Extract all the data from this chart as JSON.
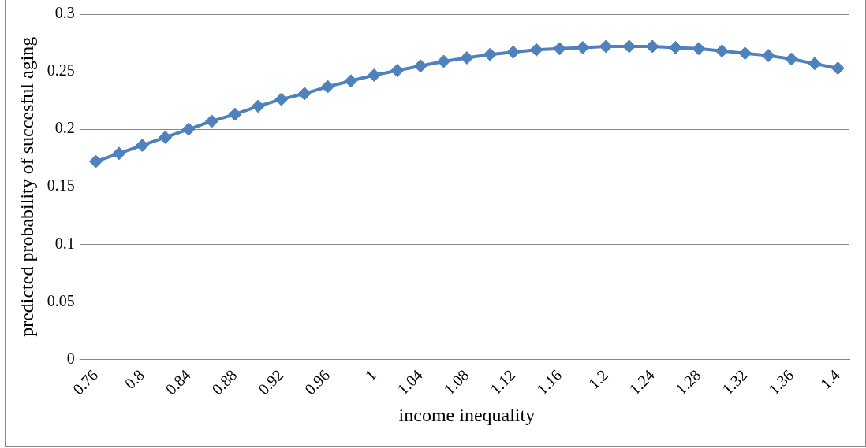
{
  "chart_data": {
    "type": "line",
    "xlabel": "income inequality",
    "ylabel": "predicted probability of succesful aging",
    "categories": [
      "0.76",
      null,
      "0.8",
      null,
      "0.84",
      null,
      "0.88",
      null,
      "0.92",
      null,
      "0.96",
      null,
      "1",
      null,
      "1.04",
      null,
      "1.08",
      null,
      "1.12",
      null,
      "1.16",
      null,
      "1.2",
      null,
      "1.24",
      null,
      "1.28",
      null,
      "1.32",
      null,
      "1.36",
      null,
      "1.4"
    ],
    "series": [
      {
        "color": "#4f81bd",
        "values": [
          0.172,
          0.179,
          0.186,
          0.193,
          0.2,
          0.207,
          0.213,
          0.22,
          0.226,
          0.231,
          0.237,
          0.242,
          0.247,
          0.251,
          0.255,
          0.259,
          0.262,
          0.265,
          0.267,
          0.269,
          0.27,
          0.271,
          0.272,
          0.272,
          0.272,
          0.271,
          0.27,
          0.268,
          0.266,
          0.264,
          0.261,
          0.257,
          0.253
        ]
      }
    ],
    "ylim": [
      0,
      0.3
    ],
    "yticks": [
      0,
      0.05,
      0.1,
      0.15,
      0.2,
      0.25,
      0.3
    ],
    "grid": "y",
    "legend": false,
    "marker": "diamond",
    "line_style": "solid"
  }
}
